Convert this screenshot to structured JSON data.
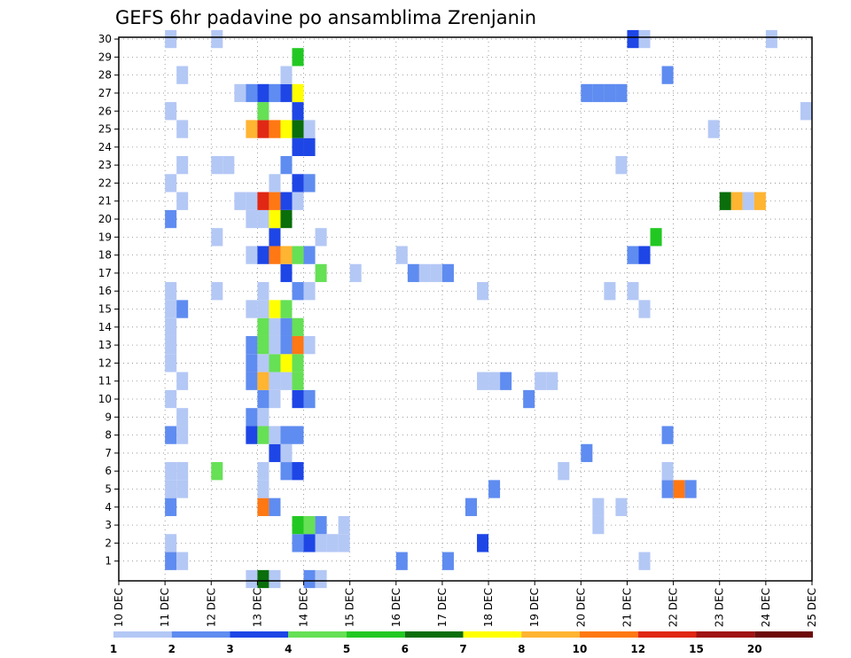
{
  "chart_data": {
    "type": "heatmap",
    "title": "GEFS 6hr padavine po ansamblima Zrenjanin",
    "xlabel": "",
    "ylabel": "",
    "x_ticks": [
      "10 DEC",
      "11 DEC",
      "12 DEC",
      "13 DEC",
      "14 DEC",
      "15 DEC",
      "16 DEC",
      "17 DEC",
      "18 DEC",
      "19 DEC",
      "20 DEC",
      "21 DEC",
      "22 DEC",
      "23 DEC",
      "24 DEC",
      "25 DEC"
    ],
    "x_range_days": [
      0,
      15
    ],
    "y_ticks": [
      "1",
      "2",
      "3",
      "4",
      "5",
      "6",
      "7",
      "8",
      "9",
      "10",
      "11",
      "12",
      "13",
      "14",
      "15",
      "16",
      "17",
      "18",
      "19",
      "20",
      "21",
      "22",
      "23",
      "24",
      "25",
      "26",
      "27",
      "28",
      "29",
      "30"
    ],
    "y_range": [
      0,
      30
    ],
    "time_step_hours": 6,
    "grid": true,
    "levels": [
      "1",
      "2",
      "3",
      "4",
      "5",
      "6",
      "7",
      "8",
      "10",
      "12",
      "15",
      "20"
    ],
    "level_colors": [
      "#b4c8f5",
      "#5f8cf0",
      "#1e46e6",
      "#66e055",
      "#22c822",
      "#0a6e0a",
      "#ffff00",
      "#ffb432",
      "#ff7814",
      "#e02814",
      "#a01414",
      "#6e0a0a"
    ],
    "cells": [
      {
        "m": 1,
        "t": [
          4
        ],
        "c": 2
      },
      {
        "m": 1,
        "t": [
          5
        ],
        "c": 1
      },
      {
        "m": 1,
        "t": [
          45
        ],
        "c": 1
      },
      {
        "m": 1,
        "t": [
          24
        ],
        "c": 2
      },
      {
        "m": 1,
        "t": [
          28
        ],
        "c": 2
      },
      {
        "m": 2,
        "t": [
          4
        ],
        "c": 1
      },
      {
        "m": 2,
        "t": [
          19
        ],
        "c": 1
      },
      {
        "m": 2,
        "t": [
          17,
          18
        ],
        "c": 1
      },
      {
        "m": 2,
        "t": [
          15
        ],
        "c": 2
      },
      {
        "m": 2,
        "t": [
          16
        ],
        "c": 3
      },
      {
        "m": 2,
        "t": [
          31
        ],
        "c": 3
      },
      {
        "m": 3,
        "t": [
          15
        ],
        "c": 5
      },
      {
        "m": 3,
        "t": [
          16
        ],
        "c": 4
      },
      {
        "m": 3,
        "t": [
          17
        ],
        "c": 2
      },
      {
        "m": 3,
        "t": [
          19
        ],
        "c": 1
      },
      {
        "m": 3,
        "t": [
          41
        ],
        "c": 1
      },
      {
        "m": 4,
        "t": [
          4
        ],
        "c": 2
      },
      {
        "m": 4,
        "t": [
          12
        ],
        "c": 9
      },
      {
        "m": 4,
        "t": [
          13
        ],
        "c": 2
      },
      {
        "m": 4,
        "t": [
          30
        ],
        "c": 2
      },
      {
        "m": 4,
        "t": [
          41
        ],
        "c": 1
      },
      {
        "m": 4,
        "t": [
          43
        ],
        "c": 1
      },
      {
        "m": 5,
        "t": [
          4,
          5
        ],
        "c": 1
      },
      {
        "m": 5,
        "t": [
          12
        ],
        "c": 1
      },
      {
        "m": 5,
        "t": [
          32
        ],
        "c": 2
      },
      {
        "m": 5,
        "t": [
          47
        ],
        "c": 2
      },
      {
        "m": 5,
        "t": [
          48
        ],
        "c": 9
      },
      {
        "m": 5,
        "t": [
          49
        ],
        "c": 2
      },
      {
        "m": 6,
        "t": [
          4,
          5
        ],
        "c": 1
      },
      {
        "m": 6,
        "t": [
          8
        ],
        "c": 4
      },
      {
        "m": 6,
        "t": [
          12
        ],
        "c": 1
      },
      {
        "m": 6,
        "t": [
          14
        ],
        "c": 2
      },
      {
        "m": 6,
        "t": [
          15
        ],
        "c": 3
      },
      {
        "m": 6,
        "t": [
          38
        ],
        "c": 1
      },
      {
        "m": 6,
        "t": [
          47
        ],
        "c": 1
      },
      {
        "m": 7,
        "t": [
          13
        ],
        "c": 3
      },
      {
        "m": 7,
        "t": [
          14
        ],
        "c": 1
      },
      {
        "m": 7,
        "t": [
          40
        ],
        "c": 2
      },
      {
        "m": 8,
        "t": [
          4
        ],
        "c": 2
      },
      {
        "m": 8,
        "t": [
          5
        ],
        "c": 1
      },
      {
        "m": 8,
        "t": [
          11
        ],
        "c": 3
      },
      {
        "m": 8,
        "t": [
          12
        ],
        "c": 4
      },
      {
        "m": 8,
        "t": [
          13
        ],
        "c": 1
      },
      {
        "m": 8,
        "t": [
          14,
          15
        ],
        "c": 2
      },
      {
        "m": 8,
        "t": [
          47
        ],
        "c": 2
      },
      {
        "m": 9,
        "t": [
          5
        ],
        "c": 1
      },
      {
        "m": 9,
        "t": [
          11
        ],
        "c": 2
      },
      {
        "m": 9,
        "t": [
          12
        ],
        "c": 1
      },
      {
        "m": 10,
        "t": [
          4
        ],
        "c": 1
      },
      {
        "m": 10,
        "t": [
          12
        ],
        "c": 2
      },
      {
        "m": 10,
        "t": [
          13
        ],
        "c": 1
      },
      {
        "m": 10,
        "t": [
          15
        ],
        "c": 3
      },
      {
        "m": 10,
        "t": [
          16
        ],
        "c": 2
      },
      {
        "m": 10,
        "t": [
          35
        ],
        "c": 2
      },
      {
        "m": 11,
        "t": [
          5
        ],
        "c": 1
      },
      {
        "m": 11,
        "t": [
          11
        ],
        "c": 2
      },
      {
        "m": 11,
        "t": [
          12
        ],
        "c": 8
      },
      {
        "m": 11,
        "t": [
          13,
          14
        ],
        "c": 1
      },
      {
        "m": 11,
        "t": [
          15
        ],
        "c": 4
      },
      {
        "m": 11,
        "t": [
          31,
          32
        ],
        "c": 1
      },
      {
        "m": 11,
        "t": [
          33
        ],
        "c": 2
      },
      {
        "m": 11,
        "t": [
          36,
          37
        ],
        "c": 1
      },
      {
        "m": 12,
        "t": [
          4
        ],
        "c": 1
      },
      {
        "m": 12,
        "t": [
          11
        ],
        "c": 2
      },
      {
        "m": 12,
        "t": [
          12
        ],
        "c": 1
      },
      {
        "m": 12,
        "t": [
          13
        ],
        "c": 4
      },
      {
        "m": 12,
        "t": [
          14
        ],
        "c": 7
      },
      {
        "m": 12,
        "t": [
          15
        ],
        "c": 4
      },
      {
        "m": 13,
        "t": [
          4
        ],
        "c": 1
      },
      {
        "m": 13,
        "t": [
          11
        ],
        "c": 2
      },
      {
        "m": 13,
        "t": [
          12
        ],
        "c": 4
      },
      {
        "m": 13,
        "t": [
          13
        ],
        "c": 1
      },
      {
        "m": 13,
        "t": [
          14
        ],
        "c": 2
      },
      {
        "m": 13,
        "t": [
          15
        ],
        "c": 9
      },
      {
        "m": 13,
        "t": [
          16
        ],
        "c": 1
      },
      {
        "m": 14,
        "t": [
          4
        ],
        "c": 1
      },
      {
        "m": 14,
        "t": [
          12
        ],
        "c": 4
      },
      {
        "m": 14,
        "t": [
          13
        ],
        "c": 1
      },
      {
        "m": 14,
        "t": [
          14
        ],
        "c": 2
      },
      {
        "m": 14,
        "t": [
          15
        ],
        "c": 4
      },
      {
        "m": 15,
        "t": [
          4
        ],
        "c": 1
      },
      {
        "m": 15,
        "t": [
          5
        ],
        "c": 2
      },
      {
        "m": 15,
        "t": [
          11,
          12
        ],
        "c": 1
      },
      {
        "m": 15,
        "t": [
          13
        ],
        "c": 7
      },
      {
        "m": 15,
        "t": [
          14
        ],
        "c": 4
      },
      {
        "m": 15,
        "t": [
          45
        ],
        "c": 1
      },
      {
        "m": 16,
        "t": [
          4
        ],
        "c": 1
      },
      {
        "m": 16,
        "t": [
          8
        ],
        "c": 1
      },
      {
        "m": 16,
        "t": [
          12
        ],
        "c": 1
      },
      {
        "m": 16,
        "t": [
          15
        ],
        "c": 2
      },
      {
        "m": 16,
        "t": [
          16
        ],
        "c": 1
      },
      {
        "m": 16,
        "t": [
          31
        ],
        "c": 1
      },
      {
        "m": 16,
        "t": [
          42
        ],
        "c": 1
      },
      {
        "m": 16,
        "t": [
          44
        ],
        "c": 1
      },
      {
        "m": 17,
        "t": [
          14
        ],
        "c": 3
      },
      {
        "m": 17,
        "t": [
          17
        ],
        "c": 4
      },
      {
        "m": 17,
        "t": [
          20
        ],
        "c": 1
      },
      {
        "m": 17,
        "t": [
          25
        ],
        "c": 2
      },
      {
        "m": 17,
        "t": [
          26,
          27
        ],
        "c": 1
      },
      {
        "m": 17,
        "t": [
          28
        ],
        "c": 2
      },
      {
        "m": 18,
        "t": [
          11
        ],
        "c": 1
      },
      {
        "m": 18,
        "t": [
          12
        ],
        "c": 3
      },
      {
        "m": 18,
        "t": [
          13
        ],
        "c": 9
      },
      {
        "m": 18,
        "t": [
          14
        ],
        "c": 8
      },
      {
        "m": 18,
        "t": [
          15
        ],
        "c": 4
      },
      {
        "m": 18,
        "t": [
          16
        ],
        "c": 2
      },
      {
        "m": 18,
        "t": [
          24
        ],
        "c": 1
      },
      {
        "m": 18,
        "t": [
          44
        ],
        "c": 2
      },
      {
        "m": 18,
        "t": [
          45
        ],
        "c": 3
      },
      {
        "m": 19,
        "t": [
          8
        ],
        "c": 1
      },
      {
        "m": 19,
        "t": [
          13
        ],
        "c": 3
      },
      {
        "m": 19,
        "t": [
          17
        ],
        "c": 1
      },
      {
        "m": 19,
        "t": [
          46
        ],
        "c": 5
      },
      {
        "m": 20,
        "t": [
          4
        ],
        "c": 2
      },
      {
        "m": 20,
        "t": [
          11,
          12
        ],
        "c": 1
      },
      {
        "m": 20,
        "t": [
          13
        ],
        "c": 7
      },
      {
        "m": 20,
        "t": [
          14
        ],
        "c": 6
      },
      {
        "m": 21,
        "t": [
          5
        ],
        "c": 1
      },
      {
        "m": 21,
        "t": [
          10,
          11
        ],
        "c": 1
      },
      {
        "m": 21,
        "t": [
          12
        ],
        "c": 10
      },
      {
        "m": 21,
        "t": [
          13
        ],
        "c": 9
      },
      {
        "m": 21,
        "t": [
          14
        ],
        "c": 3
      },
      {
        "m": 21,
        "t": [
          15
        ],
        "c": 1
      },
      {
        "m": 21,
        "t": [
          52
        ],
        "c": 6
      },
      {
        "m": 21,
        "t": [
          53
        ],
        "c": 8
      },
      {
        "m": 21,
        "t": [
          54
        ],
        "c": 1
      },
      {
        "m": 21,
        "t": [
          55
        ],
        "c": 8
      },
      {
        "m": 22,
        "t": [
          4
        ],
        "c": 1
      },
      {
        "m": 22,
        "t": [
          13
        ],
        "c": 1
      },
      {
        "m": 22,
        "t": [
          15
        ],
        "c": 3
      },
      {
        "m": 22,
        "t": [
          16
        ],
        "c": 2
      },
      {
        "m": 23,
        "t": [
          5
        ],
        "c": 1
      },
      {
        "m": 23,
        "t": [
          8,
          9
        ],
        "c": 1
      },
      {
        "m": 23,
        "t": [
          14
        ],
        "c": 2
      },
      {
        "m": 23,
        "t": [
          43
        ],
        "c": 1
      },
      {
        "m": 24,
        "t": [
          15,
          16
        ],
        "c": 3
      },
      {
        "m": 25,
        "t": [
          5
        ],
        "c": 1
      },
      {
        "m": 25,
        "t": [
          11
        ],
        "c": 8
      },
      {
        "m": 25,
        "t": [
          12
        ],
        "c": 10
      },
      {
        "m": 25,
        "t": [
          13
        ],
        "c": 9
      },
      {
        "m": 25,
        "t": [
          14
        ],
        "c": 7
      },
      {
        "m": 25,
        "t": [
          15
        ],
        "c": 6
      },
      {
        "m": 25,
        "t": [
          16
        ],
        "c": 1
      },
      {
        "m": 25,
        "t": [
          51
        ],
        "c": 1
      },
      {
        "m": 26,
        "t": [
          4
        ],
        "c": 1
      },
      {
        "m": 26,
        "t": [
          12
        ],
        "c": 4
      },
      {
        "m": 26,
        "t": [
          15
        ],
        "c": 3
      },
      {
        "m": 26,
        "t": [
          59
        ],
        "c": 1
      },
      {
        "m": 27,
        "t": [
          10
        ],
        "c": 1
      },
      {
        "m": 27,
        "t": [
          11
        ],
        "c": 2
      },
      {
        "m": 27,
        "t": [
          12
        ],
        "c": 3
      },
      {
        "m": 27,
        "t": [
          13
        ],
        "c": 2
      },
      {
        "m": 27,
        "t": [
          14
        ],
        "c": 3
      },
      {
        "m": 27,
        "t": [
          15
        ],
        "c": 7
      },
      {
        "m": 27,
        "t": [
          40,
          41,
          42,
          43
        ],
        "c": 2
      },
      {
        "m": 28,
        "t": [
          5
        ],
        "c": 1
      },
      {
        "m": 28,
        "t": [
          14
        ],
        "c": 1
      },
      {
        "m": 28,
        "t": [
          47
        ],
        "c": 2
      },
      {
        "m": 29,
        "t": [
          15
        ],
        "c": 5
      },
      {
        "m": 30,
        "t": [
          4
        ],
        "c": 1
      },
      {
        "m": 30,
        "t": [
          8
        ],
        "c": 1
      },
      {
        "m": 30,
        "t": [
          44
        ],
        "c": 3
      },
      {
        "m": 30,
        "t": [
          45
        ],
        "c": 1
      },
      {
        "m": 30,
        "t": [
          56
        ],
        "c": 1
      },
      {
        "m": 0,
        "t": [
          11
        ],
        "c": 1
      },
      {
        "m": 0,
        "t": [
          12
        ],
        "c": 6
      },
      {
        "m": 0,
        "t": [
          13
        ],
        "c": 1
      },
      {
        "m": 0,
        "t": [
          16
        ],
        "c": 2
      },
      {
        "m": 0,
        "t": [
          17
        ],
        "c": 1
      }
    ]
  }
}
